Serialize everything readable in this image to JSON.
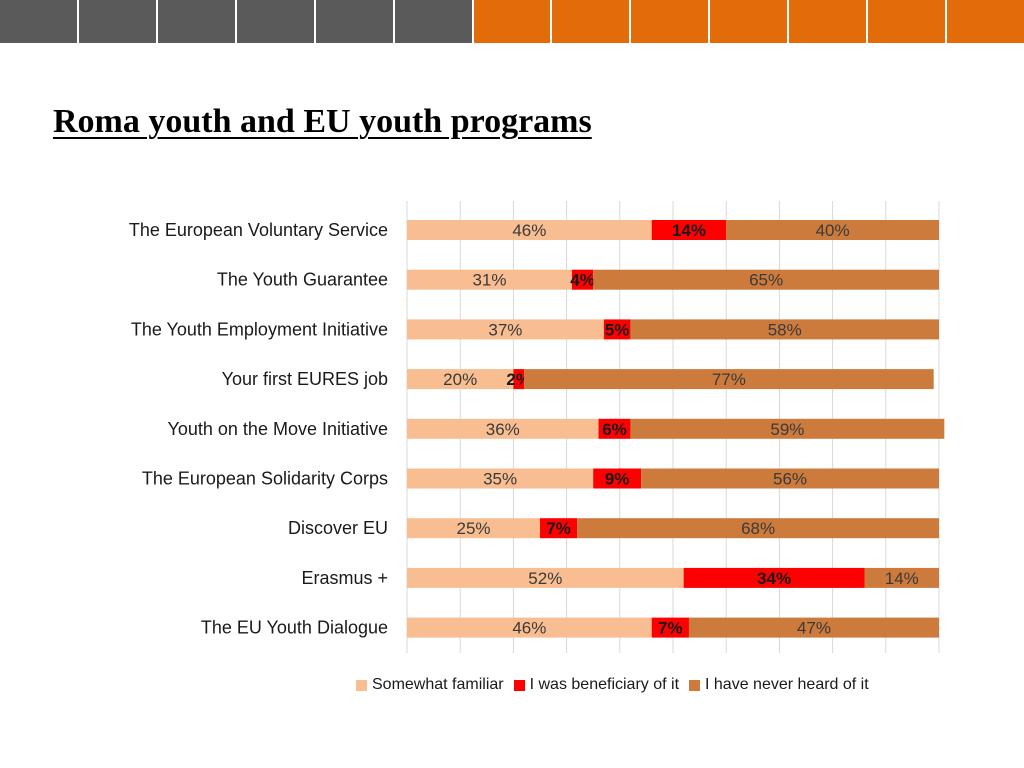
{
  "slide": {
    "title": "Roma youth and EU youth programs"
  },
  "topbar": {
    "colors": [
      "#5a5a5a",
      "#5a5a5a",
      "#5a5a5a",
      "#5a5a5a",
      "#5a5a5a",
      "#5a5a5a",
      "#e36c0a",
      "#e36c0a",
      "#e36c0a",
      "#e36c0a",
      "#e36c0a",
      "#e36c0a",
      "#e36c0a"
    ]
  },
  "chart_data": {
    "type": "bar",
    "orientation": "horizontal",
    "stacked": true,
    "categories": [
      "The European Voluntary Service",
      "The Youth Guarantee",
      "The Youth Employment Initiative",
      "Your first EURES job",
      "Youth on the Move Initiative",
      "The European Solidarity Corps",
      "Discover EU",
      "Erasmus +",
      "The EU Youth Dialogue"
    ],
    "series": [
      {
        "name": "Somewhat familiar",
        "color": "#f8be91",
        "bold_labels": false,
        "values": [
          46,
          31,
          37,
          20,
          36,
          35,
          25,
          52,
          46
        ]
      },
      {
        "name": "I was beneficiary of it",
        "color": "#ff0000",
        "bold_labels": true,
        "values": [
          14,
          4,
          5,
          2,
          6,
          9,
          7,
          34,
          7
        ]
      },
      {
        "name": "I have never heard of it",
        "color": "#cd7b3d",
        "bold_labels": false,
        "values": [
          40,
          65,
          58,
          77,
          59,
          56,
          68,
          14,
          47
        ]
      }
    ],
    "value_suffix": "%",
    "xlim": [
      0,
      100
    ],
    "grid": true,
    "legend_position": "bottom"
  }
}
